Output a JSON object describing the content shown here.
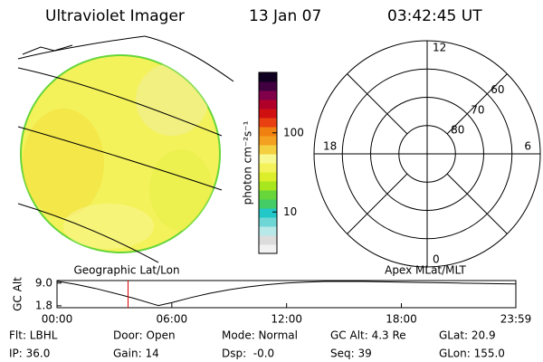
{
  "header": {
    "title": "Ultraviolet Imager",
    "date": "13 Jan 07",
    "time": "03:42:45 UT"
  },
  "geo_panel": {
    "label": "Geographic Lat/Lon"
  },
  "colorbar": {
    "label": "photon cm⁻²s⁻¹",
    "log": true,
    "lim": [
      3,
      580
    ],
    "ticks": [
      10,
      100
    ],
    "colors": [
      "#f2f2f2",
      "#dcdcdc",
      "#b8e8e8",
      "#6fd6d6",
      "#22c8c8",
      "#44cc66",
      "#66d63a",
      "#a8e61e",
      "#dcee2a",
      "#f4f25a",
      "#f8f890",
      "#f4d040",
      "#f4a020",
      "#f08010",
      "#e84010",
      "#d01010",
      "#b0002a",
      "#80004a",
      "#400040",
      "#100020"
    ]
  },
  "polar_panel": {
    "label": "Apex MLat/MLT",
    "lat_lim": [
      90,
      50
    ],
    "lat_rings": [
      60,
      70,
      80
    ],
    "mlt_labels": [
      12,
      6,
      0,
      18
    ]
  },
  "timeline": {
    "ylabel": "GC Alt",
    "ylim": [
      1.2,
      9.8
    ],
    "yticks": [
      {
        "value": 9.0,
        "label": "9.0"
      },
      {
        "value": 1.8,
        "label": "1.8"
      }
    ],
    "xlim": [
      0,
      23.983
    ],
    "xticks": [
      {
        "value": 0,
        "label": "00:00"
      },
      {
        "value": 6,
        "label": "06:00"
      },
      {
        "value": 12,
        "label": "12:00"
      },
      {
        "value": 18,
        "label": "18:00"
      },
      {
        "value": 23.983,
        "label": "23:59"
      }
    ],
    "x": [
      0,
      1,
      2,
      3,
      4,
      5,
      5.3,
      6,
      7,
      8,
      9,
      10,
      11,
      12,
      13,
      14,
      15,
      16,
      17,
      18,
      19,
      20,
      21,
      22,
      23,
      23.983
    ],
    "values": [
      9.6,
      8.6,
      7.3,
      5.8,
      4.2,
      2.4,
      1.9,
      2.8,
      4.4,
      5.8,
      6.9,
      7.8,
      8.5,
      9.0,
      9.3,
      9.5,
      9.5,
      9.5,
      9.4,
      9.3,
      9.2,
      9.1,
      9.0,
      8.9,
      8.8,
      8.7
    ],
    "marker_x": 3.7125,
    "marker_color": "#e00000"
  },
  "footer": [
    [
      "Flt: LBHL",
      "Door: Open",
      "Mode: Normal",
      "GC Alt: 4.3 Re",
      "GLat: 20.9"
    ],
    [
      "IP: 36.0",
      "Gain: 14",
      "Dsp:  -0.0",
      "Seq: 39",
      "GLon: 155.0"
    ]
  ]
}
